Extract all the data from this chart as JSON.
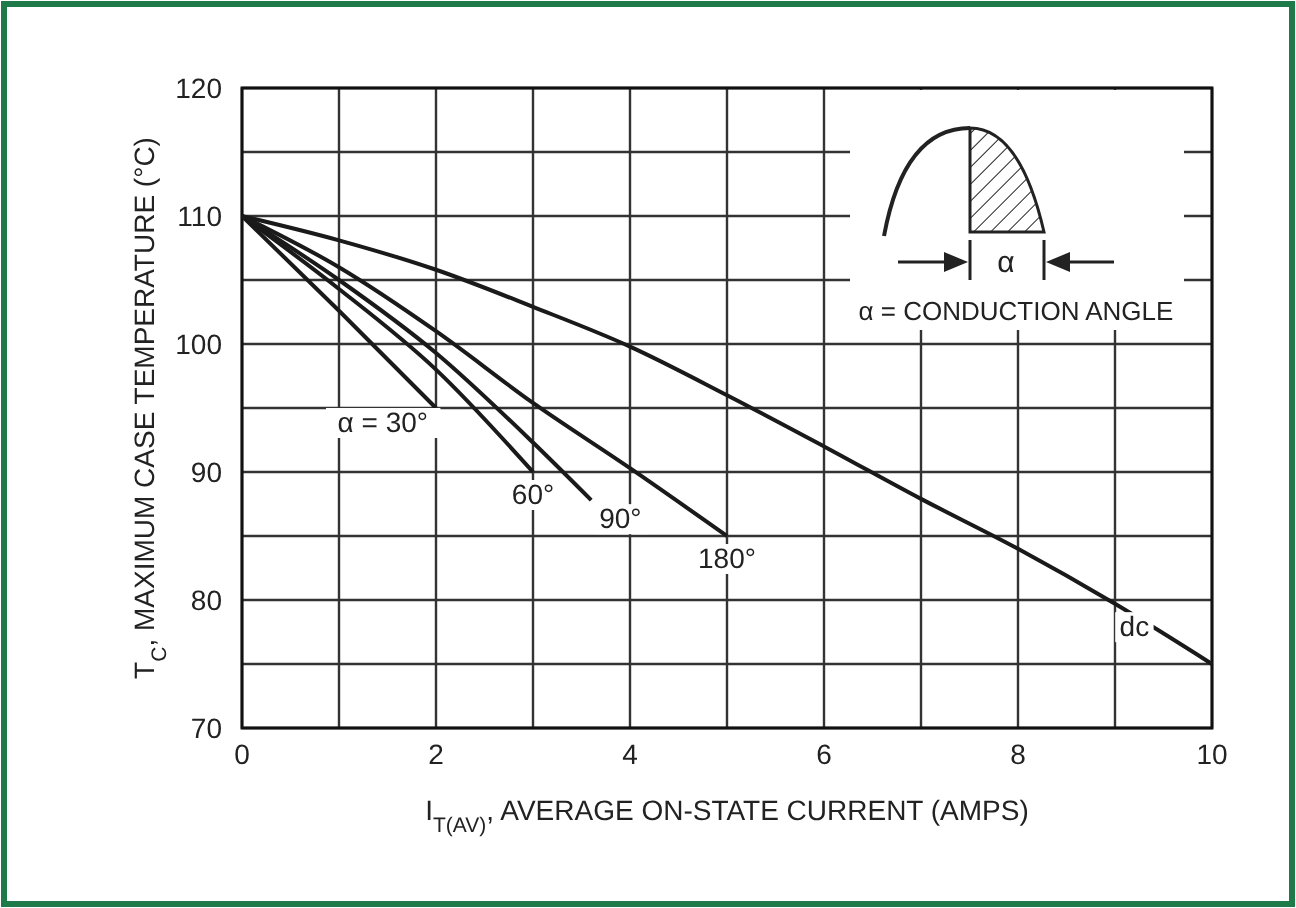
{
  "chart_data": {
    "type": "line",
    "xlabel": "I$_{T(AV)}$, AVERAGE ON-STATE CURRENT (AMPS)",
    "ylabel": "T$_{C}$, MAXIMUM CASE TEMPERATURE (°C)",
    "xlim": [
      0,
      10
    ],
    "ylim": [
      70,
      120
    ],
    "xticks": [
      0,
      {
        "value": 1,
        "label": null
      },
      2,
      {
        "value": 3,
        "label": null
      },
      4,
      {
        "value": 5,
        "label": null
      },
      6,
      {
        "value": 7,
        "label": null
      },
      8,
      {
        "value": 9,
        "label": null
      },
      10
    ],
    "yticks": [
      70,
      {
        "value": 75,
        "label": null
      },
      80,
      {
        "value": 85,
        "label": null
      },
      90,
      {
        "value": 95,
        "label": null
      },
      100,
      {
        "value": 105,
        "label": null
      },
      110,
      {
        "value": 115,
        "label": null
      },
      120
    ],
    "grid": true,
    "marker": "none",
    "line_style": "solid",
    "annotations": [
      "α",
      "α = CONDUCTION ANGLE"
    ],
    "series": [
      {
        "name": "α = 30°",
        "color": "#1a1a1a",
        "x": [
          0,
          1,
          2
        ],
        "values": [
          110,
          102.6,
          95
        ]
      },
      {
        "name": "60°",
        "color": "#1a1a1a",
        "x": [
          0,
          1,
          2,
          3
        ],
        "values": [
          110,
          104.3,
          98,
          90
        ]
      },
      {
        "name": "90°",
        "color": "#1a1a1a",
        "x": [
          0,
          1,
          2,
          3,
          3.6
        ],
        "values": [
          110,
          105,
          99.3,
          92.3,
          87.8
        ]
      },
      {
        "name": "180°",
        "color": "#1a1a1a",
        "x": [
          0,
          1,
          2,
          3,
          4,
          5
        ],
        "values": [
          110,
          106,
          101,
          95.4,
          90.3,
          85
        ]
      },
      {
        "name": "dc",
        "color": "#1a1a1a",
        "x": [
          0,
          1,
          2,
          3,
          4,
          5,
          6,
          7,
          8,
          9,
          10
        ],
        "values": [
          110,
          108.1,
          105.8,
          102.9,
          99.8,
          96,
          92,
          87.9,
          84,
          79.7,
          75
        ]
      }
    ]
  }
}
